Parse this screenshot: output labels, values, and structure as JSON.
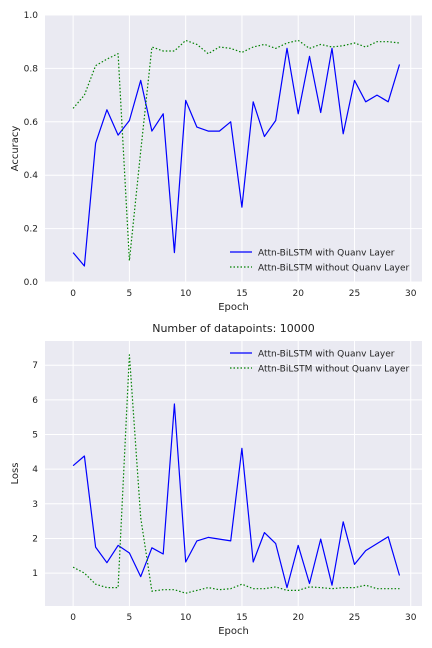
{
  "chart_data": [
    {
      "type": "line",
      "title": "",
      "xlabel": "Epoch",
      "ylabel": "Accuracy",
      "xlim": [
        -2.5,
        31.0
      ],
      "ylim": [
        0.0,
        1.0
      ],
      "xticks": [
        0,
        5,
        10,
        15,
        20,
        25,
        30
      ],
      "yticks": [
        0.0,
        0.2,
        0.4,
        0.6,
        0.8,
        1.0
      ],
      "grid": true,
      "legend_position": "lower-right",
      "x": [
        0,
        1,
        2,
        3,
        4,
        5,
        6,
        7,
        8,
        9,
        10,
        11,
        12,
        13,
        14,
        15,
        16,
        17,
        18,
        19,
        20,
        21,
        22,
        23,
        24,
        25,
        26,
        27,
        28,
        29
      ],
      "series": [
        {
          "name": "Attn-BiLSTM with Quanv Layer",
          "color": "#0000ff",
          "style": "solid",
          "values": [
            0.11,
            0.06,
            0.52,
            0.645,
            0.55,
            0.605,
            0.755,
            0.565,
            0.63,
            0.11,
            0.68,
            0.58,
            0.565,
            0.565,
            0.6,
            0.28,
            0.675,
            0.545,
            0.605,
            0.875,
            0.63,
            0.845,
            0.635,
            0.875,
            0.555,
            0.755,
            0.675,
            0.7,
            0.675,
            0.815
          ]
        },
        {
          "name": "Attn-BiLSTM without Quanv Layer",
          "color": "#008000",
          "style": "dotted",
          "values": [
            0.65,
            0.7,
            0.81,
            0.835,
            0.855,
            0.08,
            0.49,
            0.88,
            0.865,
            0.865,
            0.905,
            0.89,
            0.855,
            0.88,
            0.875,
            0.86,
            0.88,
            0.89,
            0.875,
            0.895,
            0.905,
            0.875,
            0.89,
            0.88,
            0.885,
            0.895,
            0.88,
            0.9,
            0.9,
            0.895
          ]
        }
      ]
    },
    {
      "type": "line",
      "title": "Number of datapoints: 10000",
      "xlabel": "Epoch",
      "ylabel": "Loss",
      "xlim": [
        -2.5,
        31.0
      ],
      "ylim": [
        0.05,
        7.7
      ],
      "xticks": [
        0,
        5,
        10,
        15,
        20,
        25,
        30
      ],
      "yticks": [
        1,
        2,
        3,
        4,
        5,
        6,
        7
      ],
      "grid": true,
      "legend_position": "upper-right",
      "x": [
        0,
        1,
        2,
        3,
        4,
        5,
        6,
        7,
        8,
        9,
        10,
        11,
        12,
        13,
        14,
        15,
        16,
        17,
        18,
        19,
        20,
        21,
        22,
        23,
        24,
        25,
        26,
        27,
        28,
        29
      ],
      "series": [
        {
          "name": "Attn-BiLSTM with Quanv Layer",
          "color": "#0000ff",
          "style": "solid",
          "values": [
            4.1,
            4.38,
            1.75,
            1.3,
            1.8,
            1.58,
            0.9,
            1.73,
            1.55,
            5.88,
            1.32,
            1.93,
            2.03,
            1.98,
            1.93,
            4.6,
            1.32,
            2.17,
            1.85,
            0.58,
            1.8,
            0.7,
            1.98,
            0.65,
            2.48,
            1.25,
            1.65,
            1.85,
            2.05,
            0.93
          ]
        },
        {
          "name": "Attn-BiLSTM without Quanv Layer",
          "color": "#008000",
          "style": "dotted",
          "values": [
            1.17,
            1.0,
            0.68,
            0.58,
            0.58,
            7.3,
            2.6,
            0.48,
            0.52,
            0.52,
            0.42,
            0.5,
            0.58,
            0.52,
            0.55,
            0.68,
            0.55,
            0.55,
            0.6,
            0.5,
            0.5,
            0.6,
            0.58,
            0.55,
            0.58,
            0.58,
            0.65,
            0.55,
            0.55,
            0.55
          ]
        }
      ]
    }
  ]
}
